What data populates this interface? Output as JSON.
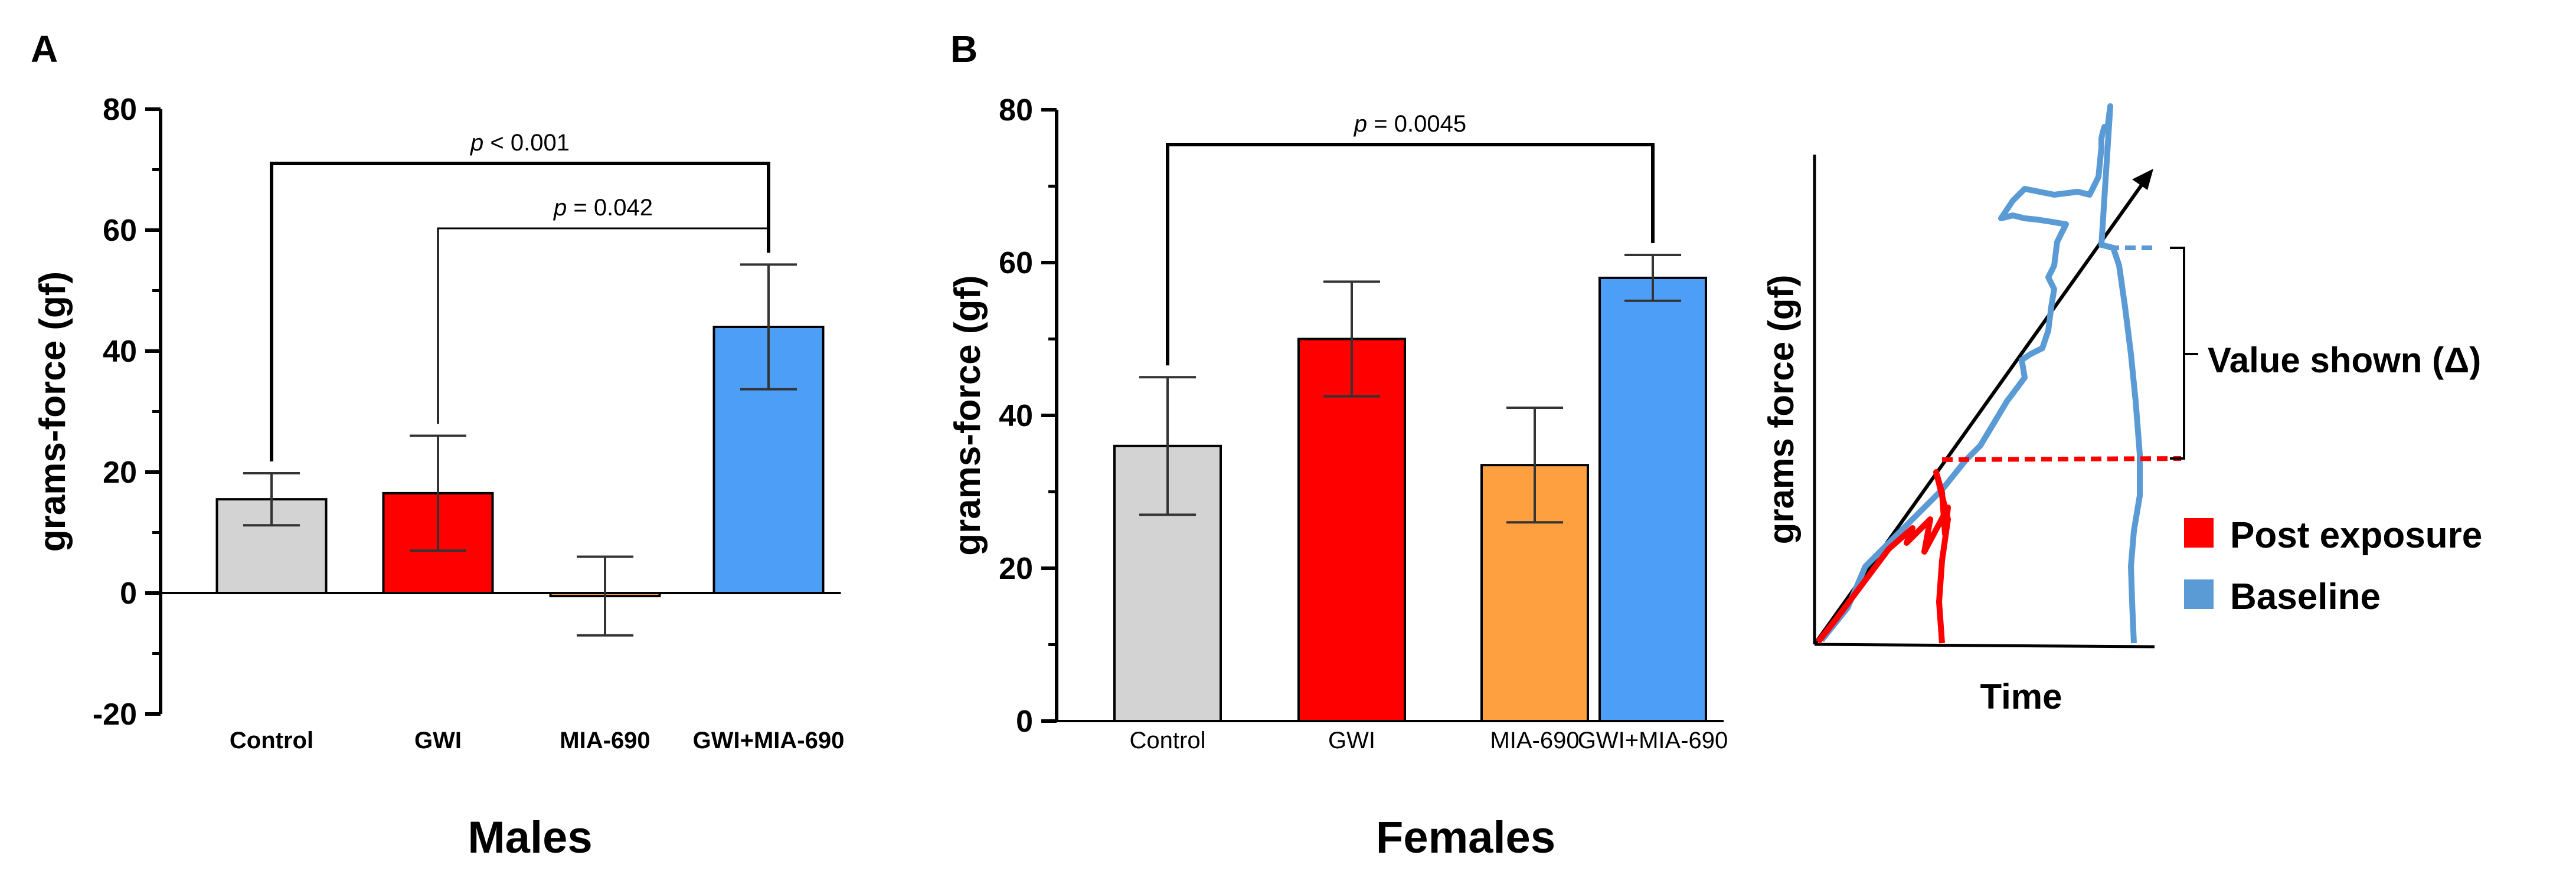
{
  "chart_data": [
    {
      "type": "bar",
      "panel": "A",
      "categories": [
        "Control",
        "GWI",
        "MIA-690",
        "GWI+MIA-690"
      ],
      "values": [
        15.5,
        16.5,
        -0.5,
        44
      ],
      "errors": [
        4.3,
        9.5,
        6.5,
        10.3
      ],
      "ylabel": "grams-force (gf)",
      "xlabel": "Males",
      "ylim": [
        -20,
        80
      ],
      "yticks": [
        "-20",
        "0",
        "20",
        "40",
        "60",
        "80"
      ],
      "brackets": [
        {
          "from": "Control",
          "to": "GWI+MIA-690",
          "p_prefix": "p",
          "p_text": " < 0.001"
        },
        {
          "from": "GWI",
          "to": "GWI+MIA-690",
          "p_prefix": "p",
          "p_text": " = 0.042"
        }
      ]
    },
    {
      "type": "bar",
      "panel": "B",
      "categories": [
        "Control",
        "GWI",
        "MIA-690",
        "GWI+MIA-690"
      ],
      "values": [
        36,
        50,
        33.5,
        58
      ],
      "errors": [
        9,
        7.5,
        7.5,
        3
      ],
      "ylabel": "grams-force (gf)",
      "xlabel": "Females",
      "ylim": [
        0,
        80
      ],
      "yticks": [
        "0",
        "20",
        "40",
        "60",
        "80"
      ],
      "brackets": [
        {
          "from": "Control",
          "to": "GWI+MIA-690",
          "p_prefix": "p",
          "p_text": " = 0.0045"
        }
      ]
    }
  ],
  "colors": {
    "Control": "#d3d3d3",
    "GWI": "#ff0000",
    "MIA-690": "#ffa040",
    "GWI+MIA-690": "#4d9ef7",
    "post_exposure": "#ff0000",
    "baseline": "#5b9bd5"
  },
  "schematic": {
    "ylabel": "grams force (gf)",
    "xlabel": "Time",
    "delta_label": "Value shown (Δ)",
    "legend": [
      {
        "name": "Post exposure",
        "color": "#ff0000"
      },
      {
        "name": "Baseline",
        "color": "#5b9bd5"
      }
    ]
  }
}
